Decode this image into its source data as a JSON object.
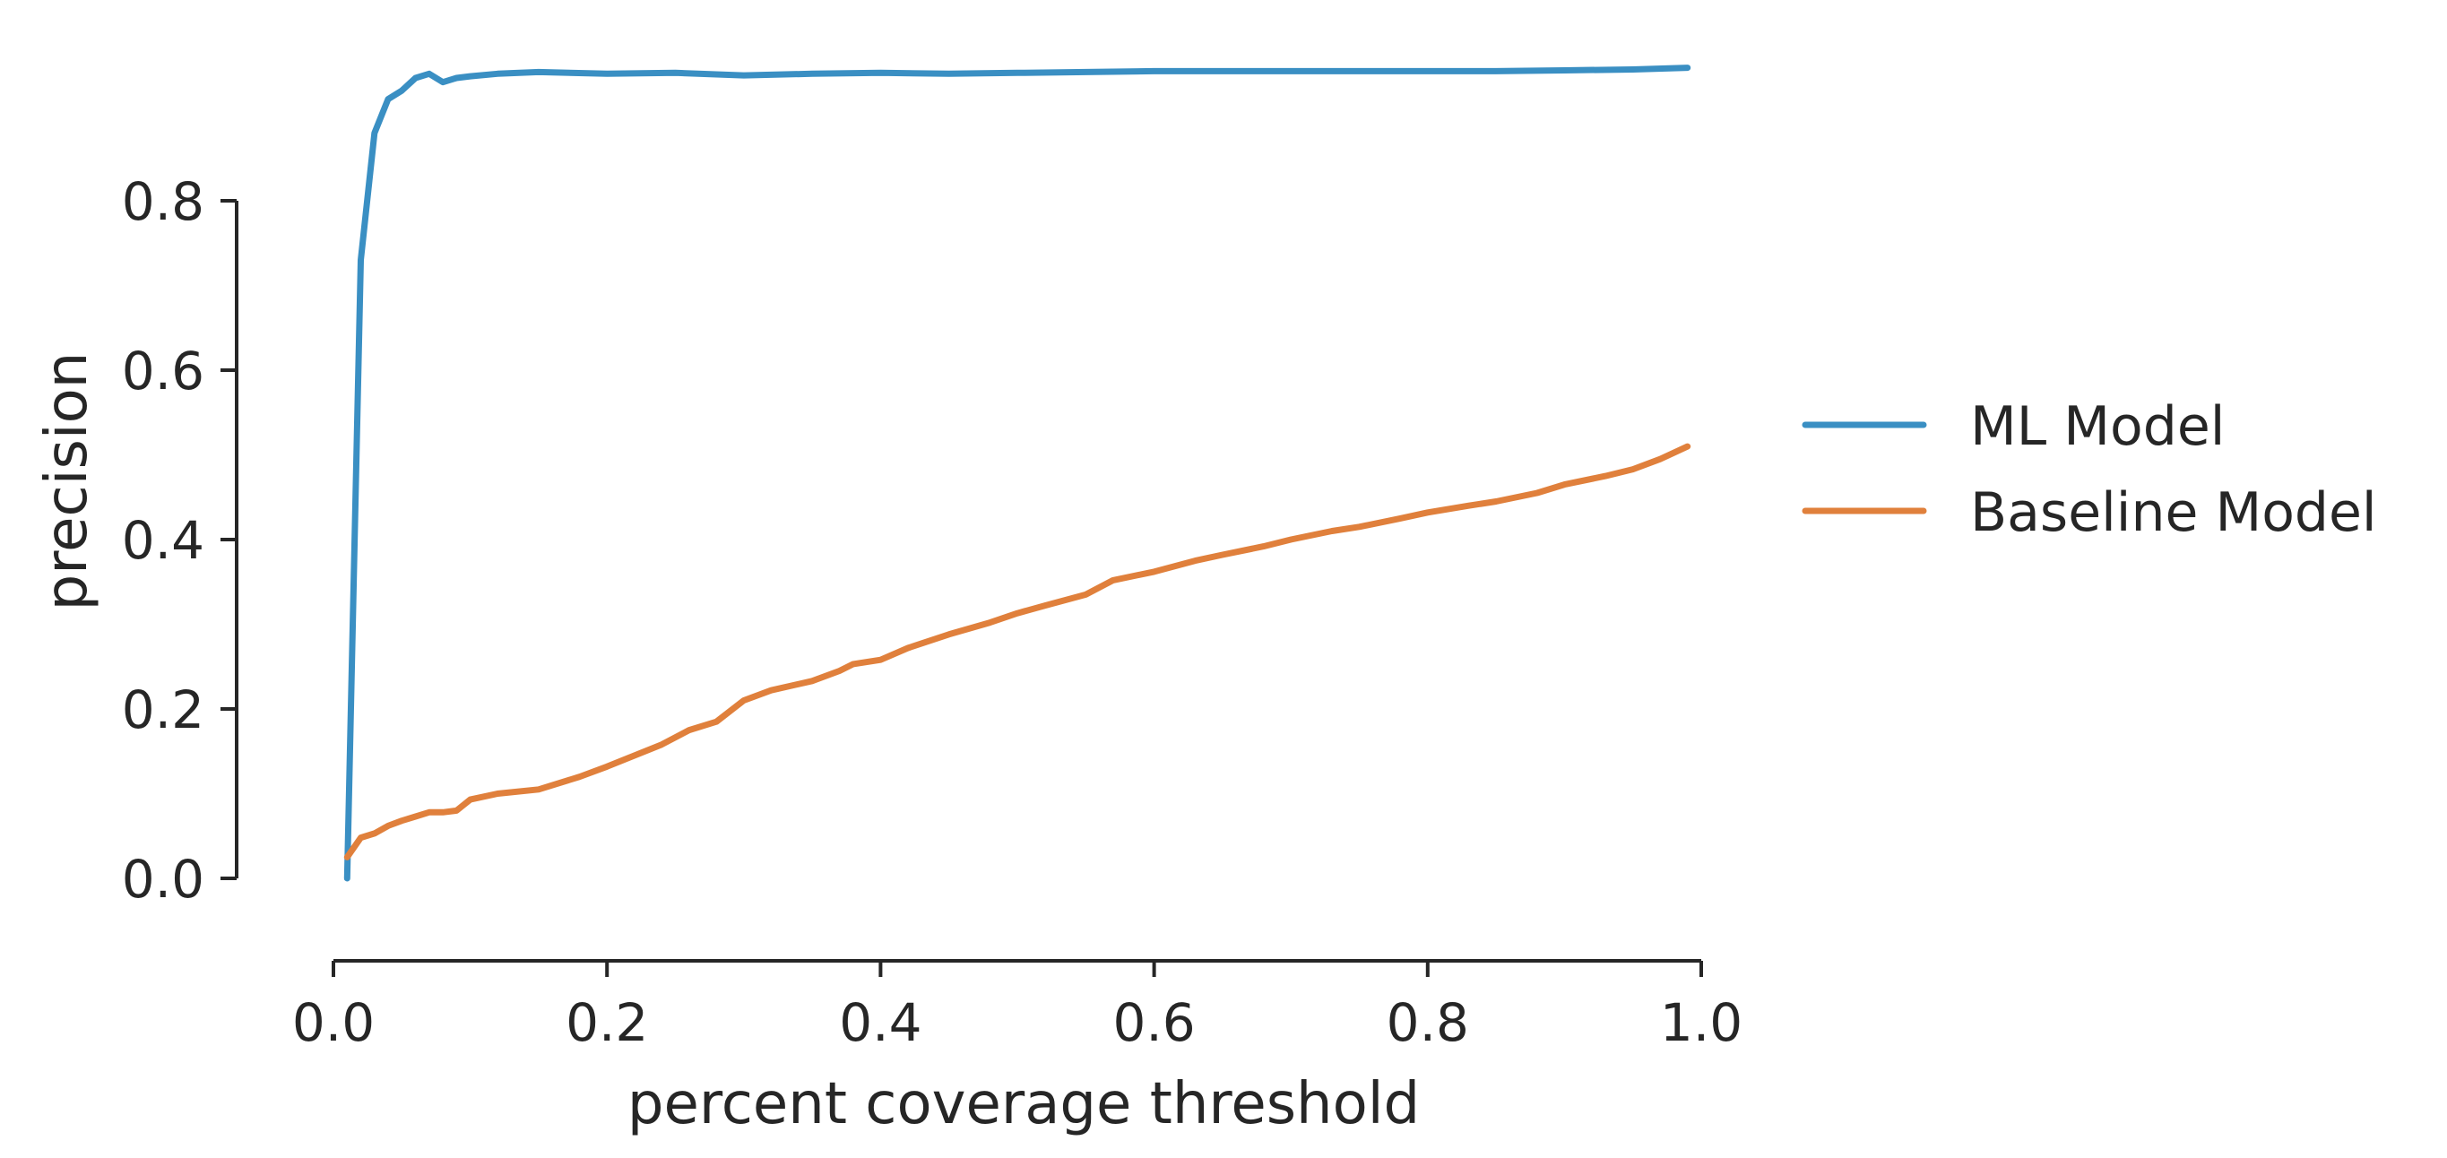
{
  "chart_data": {
    "type": "line",
    "xlabel": "percent coverage threshold",
    "ylabel": "precision",
    "xlim": [
      0.0,
      1.0
    ],
    "ylim": [
      -0.1,
      0.95
    ],
    "xticks": [
      0.0,
      0.2,
      0.4,
      0.6,
      0.8,
      1.0
    ],
    "xtick_labels": [
      "0.0",
      "0.2",
      "0.4",
      "0.6",
      "0.8",
      "1.0"
    ],
    "yticks": [
      0.0,
      0.2,
      0.4,
      0.6,
      0.8
    ],
    "ytick_labels": [
      "0.0",
      "0.2",
      "0.4",
      "0.6",
      "0.8"
    ],
    "grid": false,
    "legend_position": "right",
    "series": [
      {
        "name": "ML Model",
        "color": "#3a8fc3",
        "x": [
          0.01,
          0.02,
          0.03,
          0.04,
          0.05,
          0.06,
          0.07,
          0.08,
          0.09,
          0.1,
          0.12,
          0.15,
          0.2,
          0.25,
          0.3,
          0.35,
          0.4,
          0.45,
          0.5,
          0.55,
          0.6,
          0.65,
          0.7,
          0.75,
          0.8,
          0.85,
          0.9,
          0.95,
          0.99
        ],
        "y": [
          0.0,
          0.73,
          0.88,
          0.92,
          0.93,
          0.945,
          0.95,
          0.94,
          0.945,
          0.947,
          0.95,
          0.952,
          0.95,
          0.951,
          0.948,
          0.95,
          0.951,
          0.95,
          0.951,
          0.952,
          0.953,
          0.953,
          0.953,
          0.953,
          0.953,
          0.953,
          0.954,
          0.955,
          0.957
        ]
      },
      {
        "name": "Baseline Model",
        "color": "#e0803c",
        "x": [
          0.01,
          0.02,
          0.03,
          0.04,
          0.05,
          0.06,
          0.07,
          0.08,
          0.09,
          0.1,
          0.12,
          0.15,
          0.18,
          0.2,
          0.22,
          0.24,
          0.26,
          0.28,
          0.3,
          0.32,
          0.35,
          0.37,
          0.38,
          0.4,
          0.42,
          0.45,
          0.48,
          0.5,
          0.52,
          0.55,
          0.57,
          0.6,
          0.63,
          0.65,
          0.68,
          0.7,
          0.73,
          0.75,
          0.78,
          0.8,
          0.83,
          0.85,
          0.88,
          0.9,
          0.93,
          0.95,
          0.97,
          0.99
        ],
        "y": [
          0.025,
          0.048,
          0.053,
          0.062,
          0.068,
          0.073,
          0.078,
          0.078,
          0.08,
          0.093,
          0.1,
          0.105,
          0.12,
          0.132,
          0.145,
          0.158,
          0.175,
          0.185,
          0.21,
          0.222,
          0.233,
          0.245,
          0.253,
          0.258,
          0.272,
          0.288,
          0.302,
          0.313,
          0.322,
          0.335,
          0.352,
          0.362,
          0.375,
          0.382,
          0.392,
          0.4,
          0.41,
          0.415,
          0.425,
          0.432,
          0.44,
          0.445,
          0.455,
          0.465,
          0.475,
          0.483,
          0.495,
          0.51
        ]
      }
    ]
  }
}
